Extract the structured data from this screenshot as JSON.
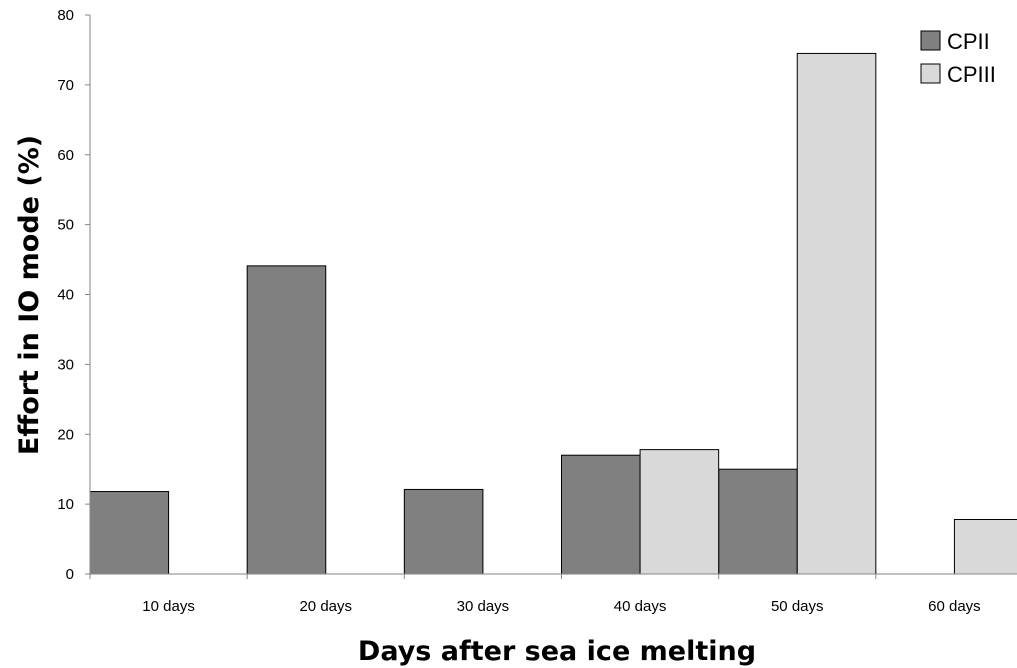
{
  "chart_data": {
    "type": "bar",
    "title": "",
    "xlabel": "Days after sea ice melting",
    "ylabel": "Effort in IO mode (%)",
    "categories": [
      "10 days",
      "20 days",
      "30 days",
      "40 days",
      "50 days",
      "60 days"
    ],
    "ylim": [
      0,
      80
    ],
    "yticks": [
      "0",
      "10",
      "20",
      "30",
      "40",
      "50",
      "60",
      "70",
      "80"
    ],
    "grid": false,
    "legend_position": "top-right",
    "series": [
      {
        "name": "CPII",
        "color": "#808080",
        "values": [
          11.8,
          44.1,
          12.1,
          17.0,
          15.0,
          null
        ]
      },
      {
        "name": "CPIII",
        "color": "#d9d9d9",
        "values": [
          null,
          null,
          null,
          17.8,
          74.5,
          7.8
        ]
      }
    ]
  }
}
